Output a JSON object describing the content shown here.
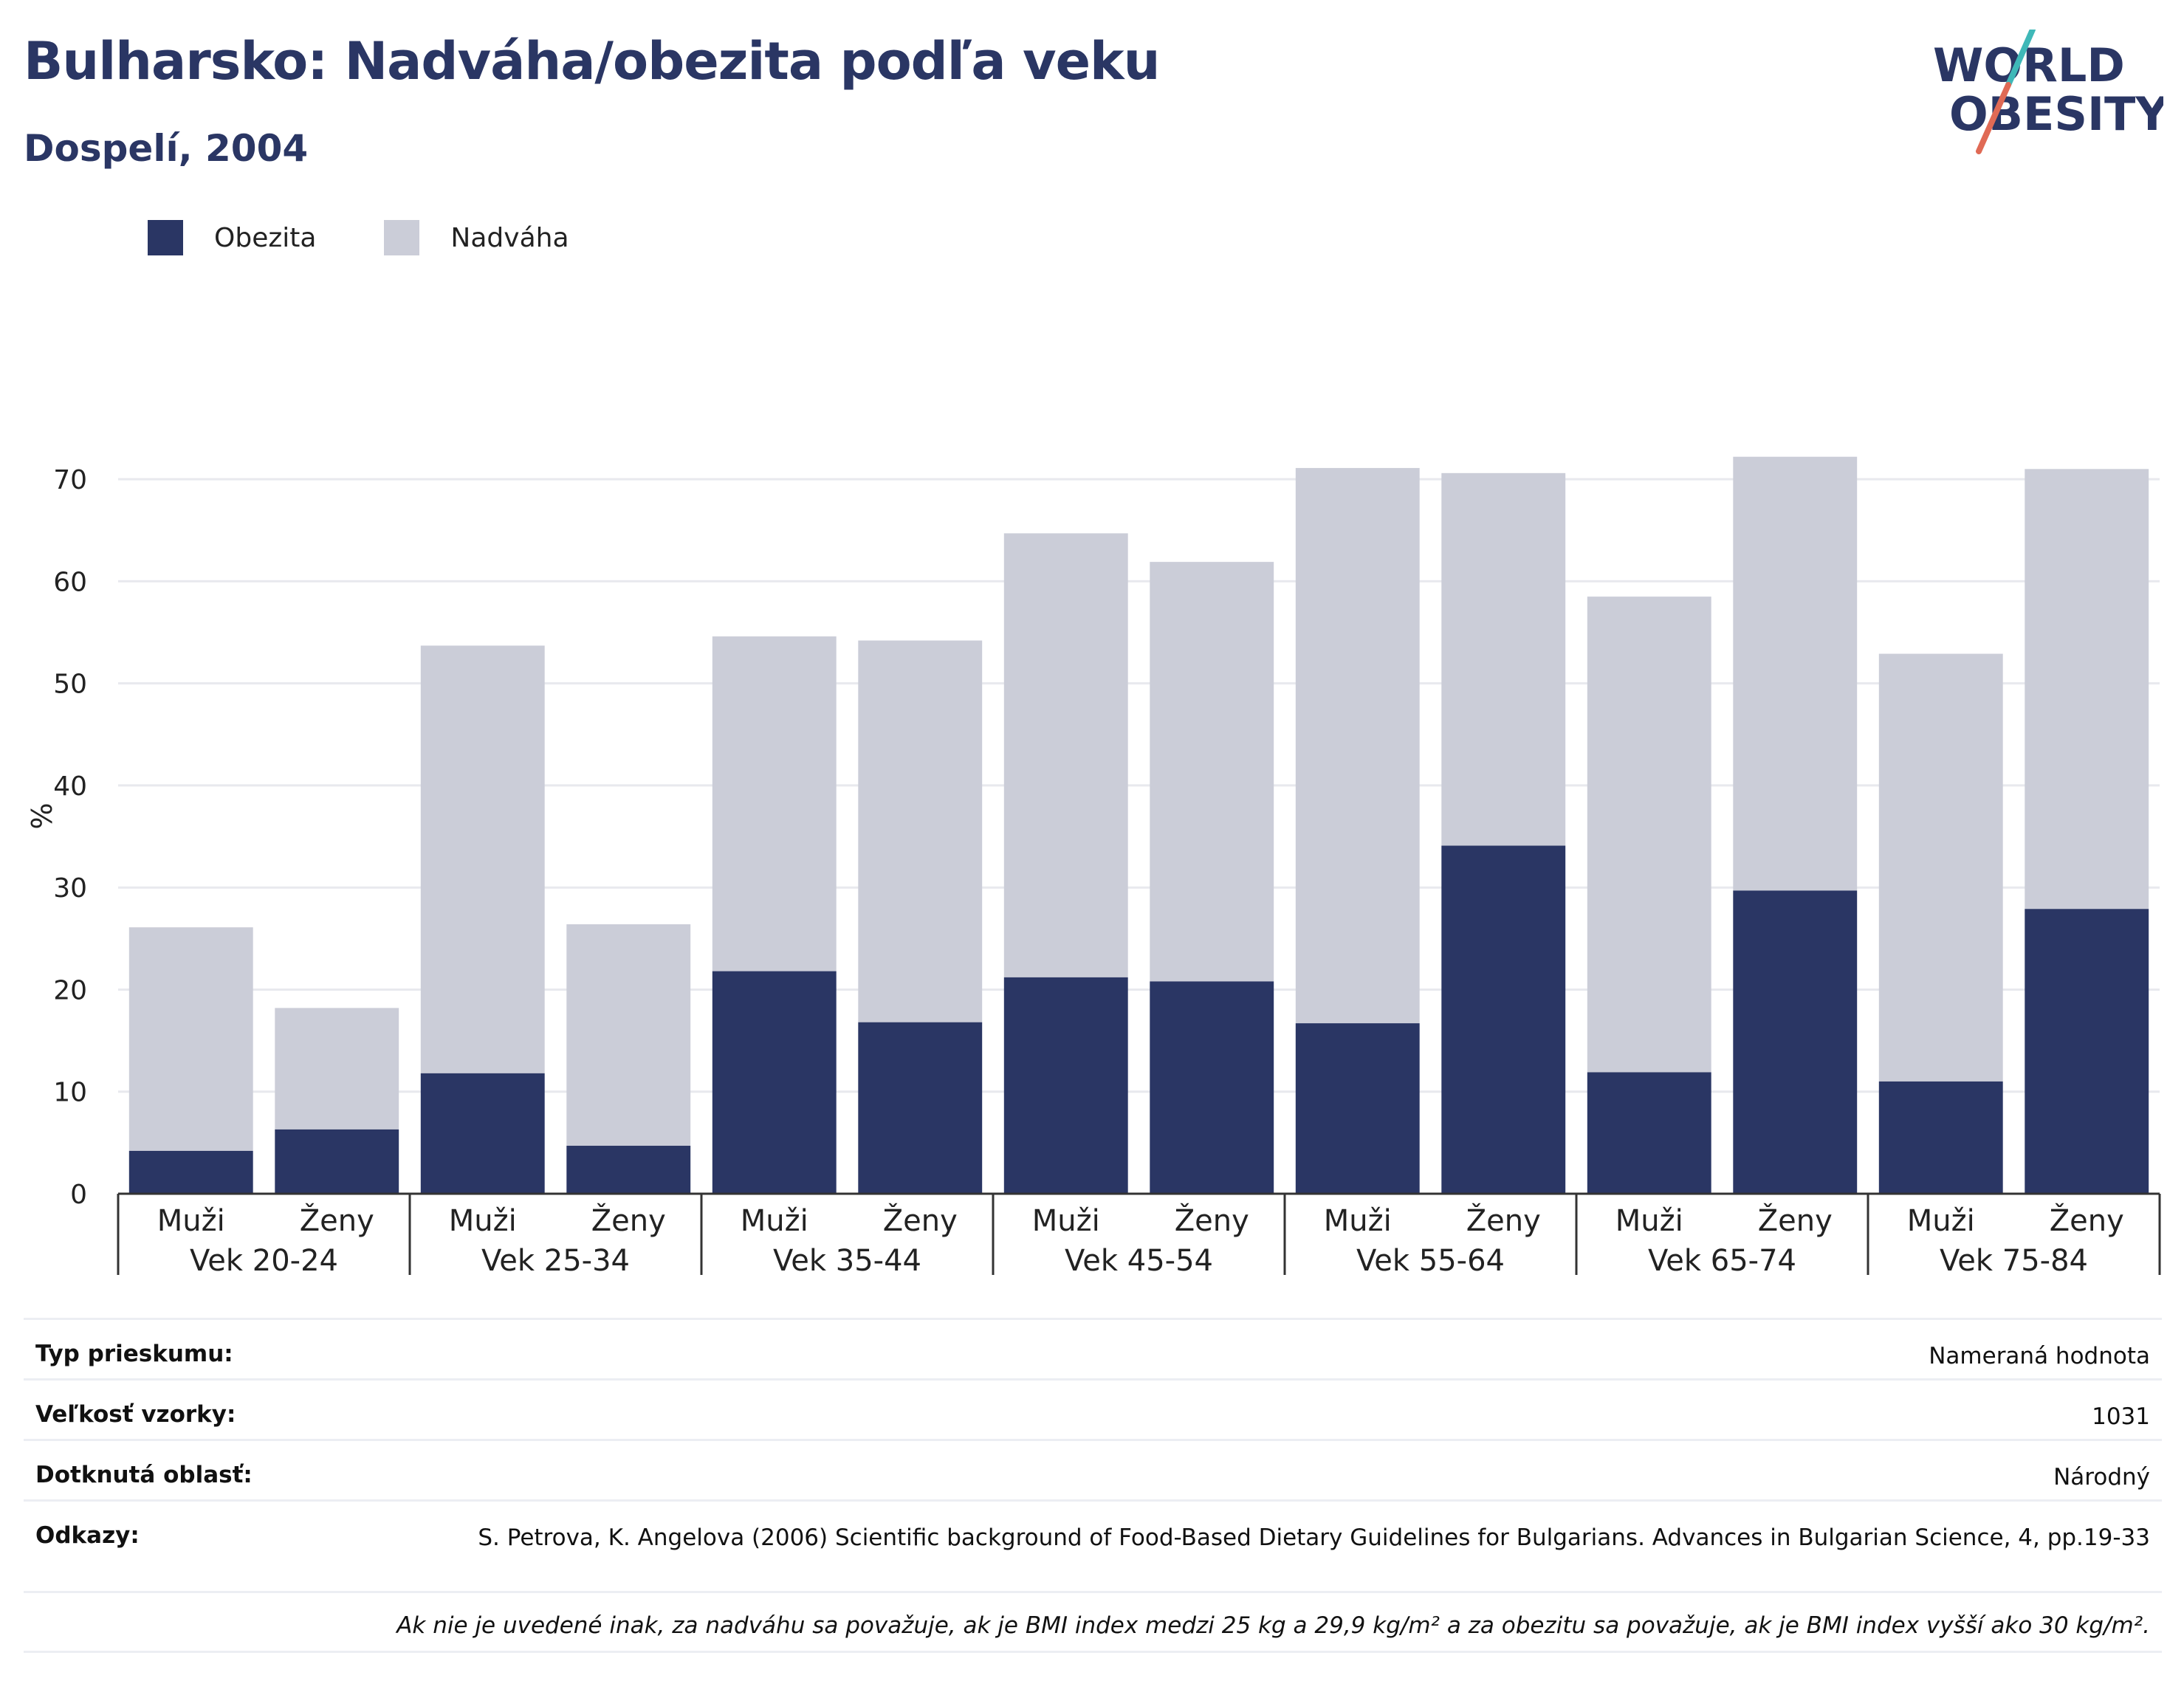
{
  "header": {
    "title": "Bulharsko: Nadváha/obezita podľa veku",
    "subtitle": "Dospelí, 2004",
    "logo_line1": "WORLD",
    "logo_line2": "OBESITY"
  },
  "legend": {
    "items": [
      {
        "label": "Obezita",
        "color": "#2a3664"
      },
      {
        "label": "Nadváha",
        "color": "#cbcdd8"
      }
    ]
  },
  "chart_data": {
    "type": "bar",
    "stacked": true,
    "ylabel": "%",
    "ylim": [
      0,
      75
    ],
    "yticks": [
      0,
      10,
      20,
      30,
      40,
      50,
      60,
      70
    ],
    "grid": true,
    "legend_position": "top-left",
    "groups": [
      "Vek 20-24",
      "Vek 25-34",
      "Vek 35-44",
      "Vek 45-54",
      "Vek 55-64",
      "Vek 65-74",
      "Vek 75-84"
    ],
    "categories": [
      "Muži",
      "Ženy",
      "Muži",
      "Ženy",
      "Muži",
      "Ženy",
      "Muži",
      "Ženy",
      "Muži",
      "Ženy",
      "Muži",
      "Ženy",
      "Muži",
      "Ženy"
    ],
    "series": [
      {
        "name": "Obezita",
        "color": "#2a3664",
        "values": [
          4.2,
          6.3,
          11.8,
          4.7,
          21.8,
          16.8,
          21.2,
          20.8,
          16.7,
          34.1,
          11.9,
          29.7,
          11.0,
          27.9
        ]
      },
      {
        "name": "Nadváha",
        "color": "#cbcdd8",
        "values": [
          21.9,
          11.9,
          41.9,
          21.7,
          32.8,
          37.4,
          43.5,
          41.1,
          54.4,
          36.5,
          46.6,
          42.5,
          41.9,
          43.1
        ]
      }
    ]
  },
  "info_table": {
    "rows": [
      {
        "key": "Typ prieskumu:",
        "value": "Nameraná hodnota"
      },
      {
        "key": "Veľkosť vzorky:",
        "value": "1031"
      },
      {
        "key": "Dotknutá oblasť:",
        "value": "Národný"
      },
      {
        "key": "Odkazy:",
        "value": "S. Petrova, K. Angelova (2006) Scientific background of Food-Based Dietary Guidelines for Bulgarians. Advances in Bulgarian Science, 4, pp.19-33"
      }
    ],
    "note": "Ak nie je uvedené inak, za nadváhu sa považuje, ak je BMI index medzi 25 kg a 29,9 kg/m² a za obezitu sa považuje, ak je BMI index vyšší ako 30 kg/m²."
  }
}
